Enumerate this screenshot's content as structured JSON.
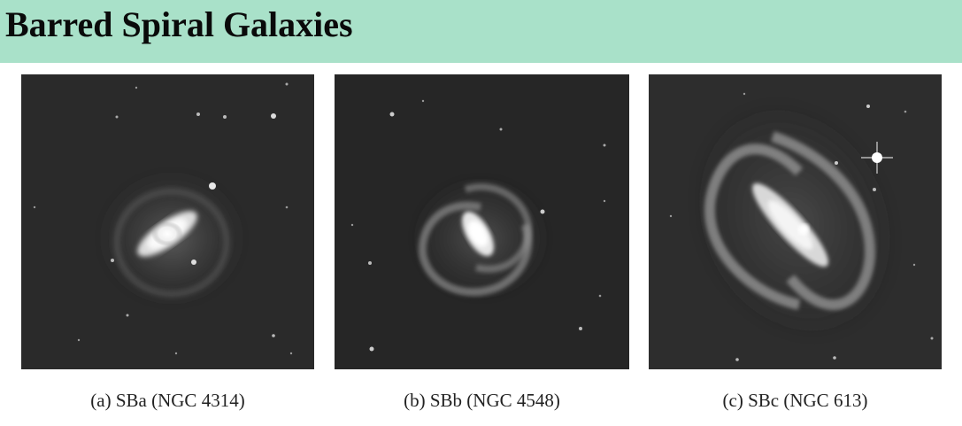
{
  "header": {
    "title": "Barred Spiral Galaxies",
    "background_color": "#a9e1c9"
  },
  "panels": [
    {
      "caption": "(a) SBa (NGC 4314)"
    },
    {
      "caption": "(b) SBb (NGC 4548)"
    },
    {
      "caption": "(c) SBc (NGC 613)"
    }
  ]
}
